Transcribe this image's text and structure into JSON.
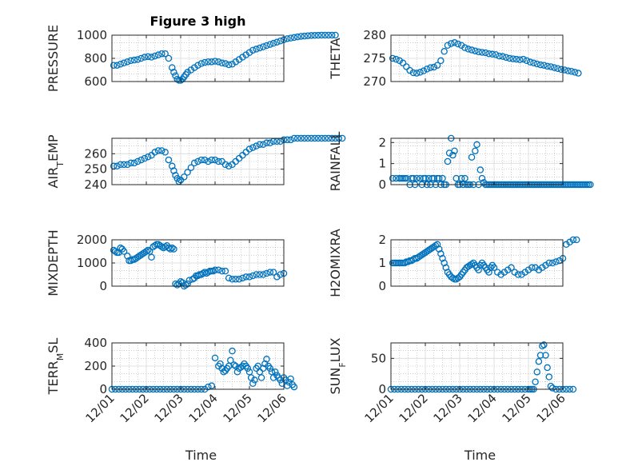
{
  "chart_data": [
    {
      "type": "scatter",
      "title": "Figure 3 high",
      "xlabel": "",
      "ylabel": "PRESSURE",
      "ylim": [
        600,
        1000
      ],
      "yticks": [
        "600",
        "800",
        "1000"
      ],
      "xticks": [],
      "grid": true,
      "x": [
        0.05,
        0.15,
        0.25,
        0.35,
        0.45,
        0.55,
        0.65,
        0.75,
        0.85,
        0.95,
        1.05,
        1.15,
        1.25,
        1.35,
        1.45,
        1.55,
        1.65,
        1.75,
        1.8,
        1.85,
        1.9,
        1.95,
        2.0,
        2.05,
        2.1,
        2.15,
        2.2,
        2.3,
        2.4,
        2.5,
        2.6,
        2.7,
        2.8,
        2.9,
        3.0,
        3.1,
        3.2,
        3.3,
        3.4,
        3.5,
        3.6,
        3.7,
        3.8,
        3.9,
        4.0,
        4.1,
        4.2,
        4.3,
        4.4,
        4.5,
        4.6,
        4.7,
        4.8,
        4.9,
        5.0,
        5.1,
        5.2,
        5.3,
        5.4,
        5.5,
        5.6,
        5.7,
        5.8,
        5.9,
        6.0,
        6.1,
        6.2,
        6.3,
        6.4,
        6.5
      ],
      "y": [
        740,
        740,
        750,
        760,
        770,
        780,
        785,
        790,
        800,
        810,
        815,
        810,
        820,
        830,
        840,
        840,
        800,
        720,
        680,
        650,
        620,
        610,
        610,
        620,
        640,
        660,
        680,
        700,
        720,
        740,
        755,
        765,
        770,
        770,
        775,
        770,
        760,
        755,
        745,
        750,
        770,
        790,
        810,
        830,
        850,
        870,
        880,
        890,
        900,
        910,
        920,
        930,
        940,
        950,
        960,
        970,
        975,
        980,
        985,
        990,
        992,
        995,
        997,
        998,
        999,
        1000,
        1000,
        1000,
        1000,
        1000
      ]
    },
    {
      "type": "scatter",
      "title": "",
      "xlabel": "",
      "ylabel": "THETA",
      "ylim": [
        270,
        280
      ],
      "yticks": [
        "270",
        "275",
        "280"
      ],
      "xticks": [],
      "grid": true,
      "x": [
        0.05,
        0.15,
        0.25,
        0.35,
        0.45,
        0.55,
        0.65,
        0.75,
        0.85,
        0.95,
        1.05,
        1.15,
        1.25,
        1.35,
        1.45,
        1.55,
        1.65,
        1.75,
        1.85,
        1.95,
        2.05,
        2.15,
        2.25,
        2.35,
        2.45,
        2.55,
        2.65,
        2.75,
        2.85,
        2.95,
        3.05,
        3.15,
        3.25,
        3.35,
        3.45,
        3.55,
        3.65,
        3.75,
        3.85,
        3.95,
        4.05,
        4.15,
        4.25,
        4.35,
        4.45,
        4.55,
        4.65,
        4.75,
        4.85,
        4.95,
        5.05,
        5.15,
        5.25,
        5.35,
        5.45
      ],
      "y": [
        275,
        274.8,
        274.5,
        274,
        273.2,
        272.4,
        271.9,
        271.8,
        272,
        272.3,
        272.7,
        273,
        273.1,
        273.5,
        274.5,
        276.5,
        277.8,
        278.2,
        278.4,
        278.1,
        277.8,
        277.3,
        277,
        276.8,
        276.6,
        276.4,
        276.3,
        276.2,
        276,
        275.9,
        275.8,
        275.5,
        275.4,
        275.2,
        275,
        274.9,
        274.8,
        274.7,
        274.8,
        274.5,
        274.2,
        274,
        273.8,
        273.6,
        273.5,
        273.3,
        273.2,
        273,
        272.8,
        272.6,
        272.5,
        272.3,
        272.2,
        272,
        271.8
      ]
    },
    {
      "type": "scatter",
      "title": "",
      "xlabel": "",
      "ylabel": "AIR_TEMP",
      "ylim": [
        240,
        270
      ],
      "yticks": [
        "240",
        "250",
        "260"
      ],
      "xticks": [],
      "grid": true,
      "x": [
        0.05,
        0.15,
        0.25,
        0.35,
        0.45,
        0.55,
        0.65,
        0.75,
        0.85,
        0.95,
        1.05,
        1.15,
        1.25,
        1.35,
        1.45,
        1.55,
        1.65,
        1.75,
        1.8,
        1.85,
        1.9,
        1.95,
        2.0,
        2.1,
        2.2,
        2.3,
        2.4,
        2.5,
        2.6,
        2.7,
        2.8,
        2.9,
        3.0,
        3.1,
        3.2,
        3.3,
        3.4,
        3.5,
        3.6,
        3.7,
        3.8,
        3.9,
        4.0,
        4.1,
        4.2,
        4.3,
        4.4,
        4.5,
        4.6,
        4.7,
        4.8,
        4.9,
        5.0,
        5.1,
        5.2,
        5.3,
        5.4,
        5.5,
        5.6,
        5.7,
        5.8,
        5.9,
        6.0,
        6.1,
        6.2,
        6.3,
        6.4,
        6.5,
        6.6,
        6.7
      ],
      "y": [
        252,
        252,
        253,
        253,
        253,
        254,
        254,
        255,
        256,
        257,
        258,
        259,
        261,
        262,
        262,
        261,
        256,
        252,
        249,
        246,
        244,
        242,
        243,
        245,
        248,
        251,
        254,
        255,
        256,
        256,
        255,
        256,
        256,
        255,
        255,
        253,
        252,
        253,
        255,
        257,
        259,
        261,
        263,
        264,
        265,
        266,
        266,
        267,
        267,
        268,
        268,
        268,
        269,
        269,
        269,
        270,
        270,
        270,
        270,
        270,
        270,
        270,
        270,
        270,
        270,
        270,
        270,
        270,
        270,
        270
      ]
    },
    {
      "type": "scatter",
      "title": "",
      "xlabel": "",
      "ylabel": "RAINFALL",
      "ylim": [
        0,
        2.2
      ],
      "yticks": [
        "0",
        "1",
        "2"
      ],
      "xticks": [],
      "grid": true,
      "x": [
        0.05,
        0.15,
        0.25,
        0.3,
        0.35,
        0.4,
        0.45,
        0.55,
        0.6,
        0.65,
        0.7,
        0.75,
        0.85,
        0.9,
        0.95,
        1.0,
        1.05,
        1.1,
        1.15,
        1.2,
        1.25,
        1.3,
        1.35,
        1.4,
        1.45,
        1.5,
        1.55,
        1.6,
        1.65,
        1.7,
        1.75,
        1.8,
        1.85,
        1.9,
        1.95,
        2.0,
        2.05,
        2.1,
        2.15,
        2.2,
        2.25,
        2.3,
        2.35,
        2.4,
        2.45,
        2.5,
        2.55,
        2.6,
        2.65,
        2.7,
        2.75,
        2.8,
        2.85,
        2.9,
        2.95,
        3.0,
        3.05,
        3.1,
        3.15,
        3.2,
        3.25,
        3.3,
        3.35,
        3.4,
        3.45,
        3.5,
        3.55,
        3.6,
        3.65,
        3.7,
        3.75,
        3.8,
        3.85,
        3.9,
        3.95,
        4.0,
        4.05,
        4.1,
        4.15,
        4.2,
        4.25,
        4.3,
        4.35,
        4.4,
        4.45,
        4.5,
        4.55,
        4.6,
        4.65,
        4.7,
        4.75,
        4.8,
        4.85,
        4.9,
        4.95,
        5.0,
        5.05,
        5.1,
        5.15,
        5.2,
        5.25,
        5.3,
        5.35,
        5.4,
        5.45,
        5.5,
        5.55,
        5.6,
        5.65,
        5.7,
        5.75,
        5.8
      ],
      "y": [
        0.3,
        0.3,
        0.3,
        0.3,
        0.3,
        0.3,
        0.3,
        0,
        0.3,
        0.3,
        0,
        0.3,
        0.3,
        0,
        0.3,
        0.3,
        0,
        0.3,
        0,
        0.3,
        0.3,
        0,
        0.3,
        0.3,
        0,
        0.3,
        0,
        0,
        1.1,
        1.5,
        2.2,
        1.4,
        1.6,
        0.3,
        0,
        0,
        0.3,
        0,
        0.3,
        0,
        0,
        0,
        1.3,
        0,
        1.6,
        1.9,
        0,
        0.7,
        0.3,
        0.1,
        0,
        0,
        0,
        0,
        0,
        0,
        0,
        0,
        0,
        0,
        0,
        0,
        0,
        0,
        0,
        0,
        0,
        0,
        0,
        0,
        0,
        0,
        0,
        0,
        0,
        0,
        0,
        0,
        0,
        0,
        0,
        0,
        0,
        0,
        0,
        0,
        0,
        0,
        0,
        0,
        0,
        0,
        0,
        0,
        0,
        0,
        0,
        0,
        0,
        0,
        0,
        0,
        0,
        0,
        0,
        0,
        0,
        0,
        0,
        0,
        0,
        0
      ]
    },
    {
      "type": "scatter",
      "title": "",
      "xlabel": "",
      "ylabel": "MIXDEPTH",
      "ylim": [
        0,
        2000
      ],
      "yticks": [
        "0",
        "1000",
        "2000"
      ],
      "xticks": [],
      "grid": true,
      "x": [
        0.05,
        0.1,
        0.15,
        0.2,
        0.25,
        0.3,
        0.35,
        0.45,
        0.5,
        0.55,
        0.6,
        0.65,
        0.7,
        0.75,
        0.8,
        0.85,
        0.9,
        0.95,
        1.0,
        1.05,
        1.1,
        1.15,
        1.2,
        1.25,
        1.3,
        1.35,
        1.4,
        1.45,
        1.5,
        1.55,
        1.6,
        1.65,
        1.7,
        1.75,
        1.8,
        1.85,
        1.9,
        1.95,
        2.0,
        2.05,
        2.1,
        2.15,
        2.2,
        2.25,
        2.35,
        2.4,
        2.45,
        2.5,
        2.55,
        2.6,
        2.65,
        2.7,
        2.75,
        2.8,
        2.85,
        2.9,
        2.95,
        3.0,
        3.1,
        3.2,
        3.3,
        3.4,
        3.5,
        3.6,
        3.7,
        3.8,
        3.9,
        4.0,
        4.1,
        4.2,
        4.3,
        4.4,
        4.5,
        4.6,
        4.7,
        4.8,
        4.9,
        5.0
      ],
      "y": [
        1550,
        1500,
        1450,
        1450,
        1650,
        1600,
        1500,
        1300,
        1100,
        1100,
        1150,
        1150,
        1200,
        1250,
        1300,
        1350,
        1400,
        1450,
        1500,
        1550,
        1500,
        1250,
        1700,
        1750,
        1800,
        1800,
        1750,
        1700,
        1650,
        1700,
        1750,
        1650,
        1600,
        1650,
        1600,
        100,
        50,
        100,
        200,
        150,
        0,
        50,
        100,
        250,
        300,
        350,
        450,
        450,
        500,
        500,
        550,
        600,
        550,
        600,
        650,
        650,
        650,
        700,
        700,
        650,
        650,
        350,
        300,
        300,
        300,
        350,
        400,
        400,
        450,
        500,
        500,
        500,
        550,
        600,
        600,
        400,
        500,
        550
      ]
    },
    {
      "type": "scatter",
      "title": "",
      "xlabel": "",
      "ylabel": "H2OMIXRA",
      "ylim": [
        0,
        2
      ],
      "yticks": [
        "0",
        "1",
        "2"
      ],
      "xticks": [],
      "grid": true,
      "x": [
        0.05,
        0.1,
        0.15,
        0.2,
        0.25,
        0.3,
        0.35,
        0.4,
        0.45,
        0.5,
        0.55,
        0.6,
        0.65,
        0.7,
        0.75,
        0.8,
        0.85,
        0.9,
        0.95,
        1.0,
        1.05,
        1.1,
        1.15,
        1.2,
        1.25,
        1.3,
        1.35,
        1.4,
        1.45,
        1.5,
        1.55,
        1.6,
        1.65,
        1.7,
        1.75,
        1.8,
        1.85,
        1.9,
        1.95,
        2.0,
        2.05,
        2.1,
        2.15,
        2.2,
        2.25,
        2.3,
        2.35,
        2.4,
        2.45,
        2.5,
        2.55,
        2.6,
        2.65,
        2.7,
        2.75,
        2.8,
        2.85,
        2.9,
        2.95,
        3.0,
        3.1,
        3.2,
        3.3,
        3.4,
        3.5,
        3.6,
        3.7,
        3.8,
        3.9,
        4.0,
        4.1,
        4.2,
        4.3,
        4.4,
        4.5,
        4.6,
        4.7,
        4.8,
        4.9,
        5.0,
        5.1,
        5.2,
        5.3,
        5.4
      ],
      "y": [
        1,
        1,
        1,
        1,
        1,
        1,
        1,
        1,
        1.05,
        1.05,
        1.1,
        1.1,
        1.15,
        1.2,
        1.2,
        1.25,
        1.3,
        1.35,
        1.4,
        1.45,
        1.5,
        1.55,
        1.6,
        1.65,
        1.7,
        1.75,
        1.8,
        1.6,
        1.4,
        1.2,
        1.0,
        0.8,
        0.6,
        0.5,
        0.4,
        0.35,
        0.3,
        0.3,
        0.35,
        0.4,
        0.5,
        0.6,
        0.7,
        0.8,
        0.85,
        0.9,
        0.95,
        1.0,
        0.9,
        0.8,
        0.7,
        0.9,
        1.0,
        0.9,
        0.8,
        0.7,
        0.6,
        0.8,
        0.9,
        0.8,
        0.6,
        0.5,
        0.6,
        0.7,
        0.8,
        0.6,
        0.5,
        0.5,
        0.6,
        0.7,
        0.8,
        0.8,
        0.7,
        0.8,
        0.9,
        1.0,
        1.0,
        1.05,
        1.1,
        1.2,
        1.8,
        1.9,
        2.0,
        2.0
      ]
    },
    {
      "type": "scatter",
      "title": "",
      "xlabel": "Time",
      "ylabel": "TERR_MSL",
      "ylim": [
        0,
        400
      ],
      "yticks": [
        "0",
        "200",
        "400"
      ],
      "xticks": [
        "12/01",
        "12/02",
        "12/03",
        "12/04",
        "12/05",
        "12/06"
      ],
      "grid": true,
      "x": [
        0.0,
        0.1,
        0.2,
        0.3,
        0.4,
        0.5,
        0.6,
        0.7,
        0.8,
        0.9,
        1.0,
        1.1,
        1.2,
        1.3,
        1.4,
        1.5,
        1.6,
        1.7,
        1.8,
        1.9,
        2.0,
        2.1,
        2.2,
        2.3,
        2.4,
        2.5,
        2.6,
        2.7,
        2.8,
        2.9,
        3.0,
        3.1,
        3.15,
        3.2,
        3.25,
        3.3,
        3.35,
        3.4,
        3.45,
        3.5,
        3.55,
        3.6,
        3.65,
        3.7,
        3.75,
        3.8,
        3.85,
        3.9,
        3.95,
        4.0,
        4.05,
        4.1,
        4.15,
        4.2,
        4.25,
        4.3,
        4.35,
        4.4,
        4.45,
        4.5,
        4.55,
        4.6,
        4.65,
        4.7,
        4.75,
        4.8,
        4.85,
        4.9,
        4.95,
        5.0,
        5.05,
        5.1,
        5.15,
        5.2,
        5.25,
        5.3
      ],
      "y": [
        0,
        0,
        0,
        0,
        0,
        0,
        0,
        0,
        0,
        0,
        0,
        0,
        0,
        0,
        0,
        0,
        0,
        0,
        0,
        0,
        0,
        0,
        0,
        0,
        0,
        0,
        0,
        0,
        20,
        30,
        270,
        200,
        220,
        180,
        150,
        160,
        180,
        200,
        250,
        330,
        210,
        200,
        150,
        180,
        190,
        200,
        220,
        200,
        180,
        150,
        100,
        50,
        80,
        180,
        200,
        150,
        100,
        180,
        220,
        260,
        200,
        180,
        150,
        100,
        150,
        120,
        100,
        80,
        50,
        100,
        80,
        30,
        60,
        90,
        40,
        20
      ]
    },
    {
      "type": "scatter",
      "title": "",
      "xlabel": "Time",
      "ylabel": "SUN_FLUX",
      "ylim": [
        0,
        75
      ],
      "yticks": [
        "0",
        "50"
      ],
      "xticks": [
        "12/01",
        "12/02",
        "12/03",
        "12/04",
        "12/05",
        "12/06"
      ],
      "grid": true,
      "x": [
        0.0,
        0.1,
        0.2,
        0.3,
        0.4,
        0.5,
        0.6,
        0.7,
        0.8,
        0.9,
        1.0,
        1.1,
        1.2,
        1.3,
        1.4,
        1.5,
        1.6,
        1.7,
        1.8,
        1.9,
        2.0,
        2.1,
        2.2,
        2.3,
        2.4,
        2.5,
        2.6,
        2.7,
        2.8,
        2.9,
        3.0,
        3.1,
        3.2,
        3.3,
        3.4,
        3.5,
        3.6,
        3.7,
        3.8,
        3.9,
        4.0,
        4.05,
        4.1,
        4.15,
        4.2,
        4.25,
        4.3,
        4.35,
        4.4,
        4.45,
        4.5,
        4.55,
        4.6,
        4.65,
        4.7,
        4.8,
        4.9,
        5.0,
        5.1,
        5.2,
        5.3
      ],
      "y": [
        0,
        0,
        0,
        0,
        0,
        0,
        0,
        0,
        0,
        0,
        0,
        0,
        0,
        0,
        0,
        0,
        0,
        0,
        0,
        0,
        0,
        0,
        0,
        0,
        0,
        0,
        0,
        0,
        0,
        0,
        0,
        0,
        0,
        0,
        0,
        0,
        0,
        0,
        0,
        0,
        0,
        0,
        0,
        0,
        12,
        28,
        45,
        55,
        70,
        72,
        55,
        35,
        20,
        5,
        2,
        0,
        0,
        0,
        0,
        0,
        0
      ]
    }
  ],
  "colors": {
    "marker": "#0072bd",
    "axis": "#262626",
    "grid": "#dcdcdc",
    "minor_grid": "#b0b0b0"
  }
}
